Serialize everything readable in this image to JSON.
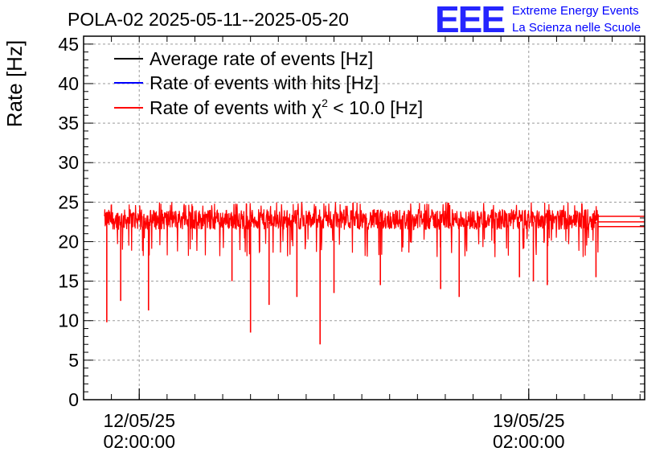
{
  "chart_data": {
    "type": "line",
    "title": "POLA-02 2025-05-11--2025-05-20",
    "ylabel": "Rate [Hz]",
    "xlabel": "",
    "ylim": [
      0,
      46
    ],
    "y_major_ticks": [
      0,
      5,
      10,
      15,
      20,
      25,
      30,
      35,
      40,
      45
    ],
    "xlim": [
      "2025-05-11T02:00:00",
      "2025-05-21T04:00:00"
    ],
    "x_tick_labels": [
      {
        "x": "2025-05-12T02:00:00",
        "date": "12/05/25",
        "time": "02:00:00"
      },
      {
        "x": "2025-05-19T02:00:00",
        "date": "19/05/25",
        "time": "02:00:00"
      }
    ],
    "data_range": [
      "2025-05-11T11:00:00",
      "2025-05-20T08:00:00"
    ],
    "grid": true,
    "legend_position": "top-left",
    "series": [
      {
        "name": "Average rate of events [Hz]",
        "color": "#000000",
        "values": [
          22.5
        ]
      },
      {
        "name": "Rate of events with hits [Hz]",
        "color": "#0000ff",
        "values": [
          22.0
        ]
      },
      {
        "name": "Rate of events with χ² < 10.0 [Hz]",
        "color": "#ff0000",
        "typical_range": [
          20.5,
          24.5
        ],
        "dips": [
          {
            "x": "2025-05-11T12:00:00",
            "y": 9.8
          },
          {
            "x": "2025-05-11T18:00:00",
            "y": 12.5
          },
          {
            "x": "2025-05-12T06:00:00",
            "y": 11.3
          },
          {
            "x": "2025-05-13T18:00:00",
            "y": 15.0
          },
          {
            "x": "2025-05-14T02:00:00",
            "y": 8.5
          },
          {
            "x": "2025-05-14T10:00:00",
            "y": 12.0
          },
          {
            "x": "2025-05-14T22:00:00",
            "y": 13.0
          },
          {
            "x": "2025-05-15T08:00:00",
            "y": 7.0
          },
          {
            "x": "2025-05-15T14:00:00",
            "y": 13.5
          },
          {
            "x": "2025-05-16T10:00:00",
            "y": 14.5
          },
          {
            "x": "2025-05-17T12:00:00",
            "y": 14.0
          },
          {
            "x": "2025-05-17T20:00:00",
            "y": 13.0
          },
          {
            "x": "2025-05-18T22:00:00",
            "y": 15.5
          },
          {
            "x": "2025-05-19T04:00:00",
            "y": 15.0
          },
          {
            "x": "2025-05-19T10:00:00",
            "y": 14.5
          },
          {
            "x": "2025-05-20T07:00:00",
            "y": 15.5
          }
        ]
      }
    ],
    "legend_entries": [
      {
        "text": "Average rate of events [Hz]",
        "color": "#000000"
      },
      {
        "text": "Rate of events with hits [Hz]",
        "color": "#0000ff"
      },
      {
        "text_prefix": "Rate of events with ",
        "symbol": "χ",
        "superscript": "2",
        "text_suffix": " < 10.0 [Hz]",
        "color": "#ff0000"
      }
    ],
    "right_edge_lines": [
      23.2,
      22.5,
      21.9
    ]
  },
  "logo": {
    "big": "EEE",
    "line1": "Extreme Energy Events",
    "line2": "La Scienza nelle Scuole"
  }
}
